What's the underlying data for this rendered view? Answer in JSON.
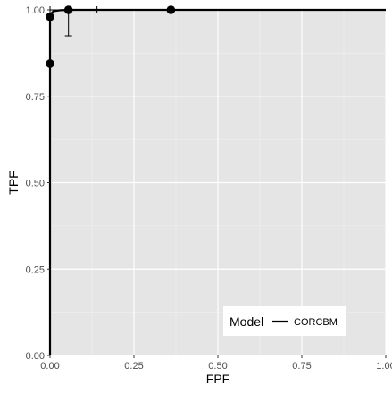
{
  "chart_data": {
    "type": "line",
    "title": "",
    "xlabel": "FPF",
    "ylabel": "TPF",
    "xlim": [
      0,
      1
    ],
    "ylim": [
      0,
      1
    ],
    "grid": true,
    "x_ticks": [
      0,
      0.25,
      0.5,
      0.75,
      1
    ],
    "y_ticks": [
      0,
      0.25,
      0.5,
      0.75,
      1
    ],
    "x_tick_labels": [
      "0.00",
      "0.25",
      "0.50",
      "0.75",
      "1.00"
    ],
    "y_tick_labels": [
      "0.00",
      "0.25",
      "0.50",
      "0.75",
      "1.00"
    ],
    "legend": {
      "title": "Model",
      "position": "bottom-right",
      "entries": [
        {
          "label": "CORCBM"
        }
      ]
    },
    "series": [
      {
        "name": "CORCBM",
        "curve": [
          {
            "x": 0.0,
            "y": 0.0
          },
          {
            "x": 0.0,
            "y": 0.6
          },
          {
            "x": 0.0,
            "y": 0.8
          },
          {
            "x": 0.0,
            "y": 0.9
          },
          {
            "x": 0.0,
            "y": 0.95
          },
          {
            "x": 0.0,
            "y": 0.975
          },
          {
            "x": 0.002,
            "y": 0.988
          },
          {
            "x": 0.01,
            "y": 0.996
          },
          {
            "x": 0.03,
            "y": 0.999
          },
          {
            "x": 0.06,
            "y": 1.0
          },
          {
            "x": 1.0,
            "y": 1.0
          }
        ],
        "operating_points": [
          {
            "x": 0.0,
            "y": 0.845
          },
          {
            "x": 0.0,
            "y": 0.98
          },
          {
            "x": 0.055,
            "y": 1.0
          },
          {
            "x": 0.36,
            "y": 1.0
          }
        ],
        "error_bars": [
          {
            "x": 0.055,
            "y": 1.0,
            "ymin": 0.925,
            "ymax": 1.0,
            "xmin": 0.0,
            "xmax": 0.14
          }
        ]
      }
    ]
  },
  "colors": {
    "panel_background": "#e5e5e5",
    "grid_major": "#ffffff",
    "grid_minor": "#f2f2f2",
    "series": "#000000",
    "tick_text": "#4d4d4d"
  }
}
